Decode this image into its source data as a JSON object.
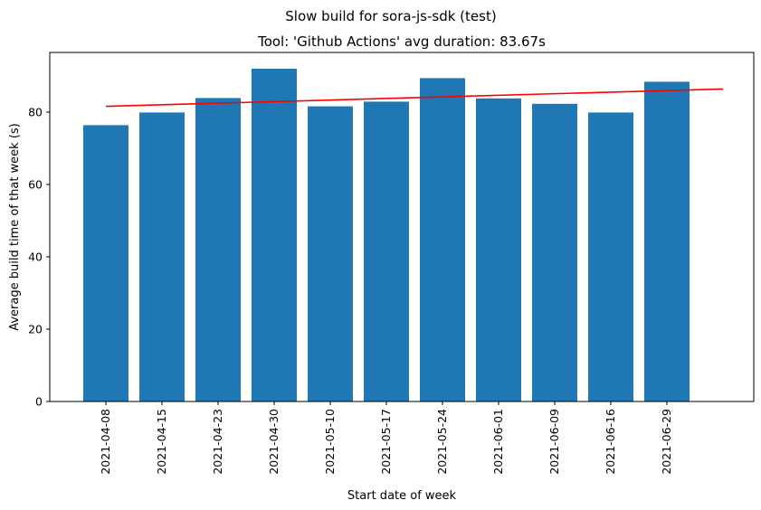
{
  "chart_data": {
    "type": "bar",
    "suptitle": "Slow build for sora-js-sdk (test)",
    "title": "Tool: 'Github Actions' avg duration: 83.67s",
    "xlabel": "Start date of week",
    "ylabel": "Average build time of that week (s)",
    "categories": [
      "2021-04-08",
      "2021-04-15",
      "2021-04-23",
      "2021-04-30",
      "2021-05-10",
      "2021-05-17",
      "2021-05-24",
      "2021-06-01",
      "2021-06-09",
      "2021-06-16",
      "2021-06-29"
    ],
    "values": [
      76.4,
      79.9,
      83.9,
      92.0,
      81.6,
      82.9,
      89.4,
      83.8,
      82.3,
      79.9,
      88.4
    ],
    "ylim": [
      0,
      96.5
    ],
    "yticks": [
      0,
      20,
      40,
      60,
      80
    ],
    "trend_line": {
      "start": 81.6,
      "end": 86.4,
      "color": "#ff0000"
    },
    "bar_color": "#1f77b4",
    "grid": false,
    "legend": "none"
  }
}
